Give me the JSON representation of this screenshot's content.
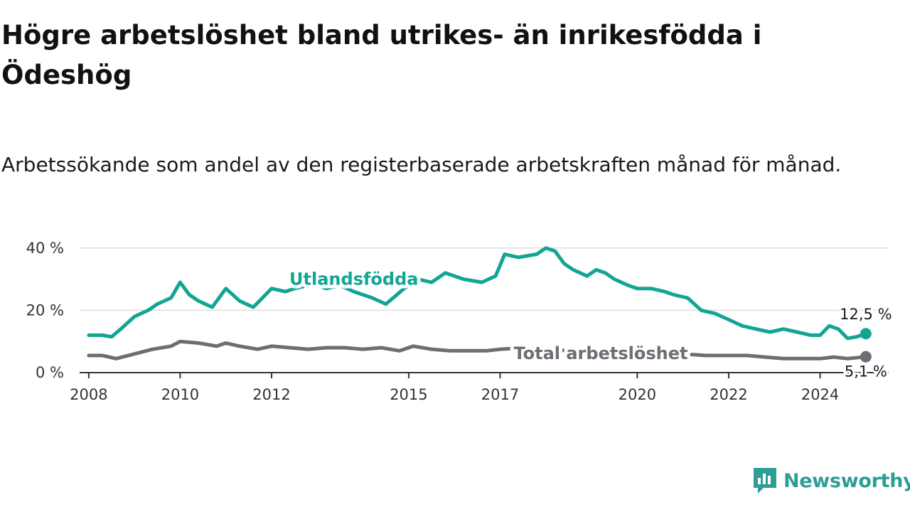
{
  "title": "Högre arbetslöshet bland utrikes- än inrikesfödda i Ödeshög",
  "subtitle": "Arbetssökande som andel av den registerbaserade arbetskraften månad för månad.",
  "brand": "Newsworthy",
  "colors": {
    "foreign_born": "#12a594",
    "total": "#6e6c75",
    "grid": "#dddddd",
    "axis": "#333333",
    "brand": "#2e9e95"
  },
  "chart_data": {
    "type": "line",
    "title": "Högre arbetslöshet bland utrikes- än inrikesfödda i Ödeshög",
    "ylim": [
      0,
      42
    ],
    "xlim": [
      2007.8,
      2025.5
    ],
    "x_ticks": [
      2008,
      2010,
      2012,
      2015,
      2017,
      2020,
      2022,
      2024
    ],
    "x_tick_labels": [
      "2008",
      "2010",
      "2012",
      "2015",
      "2017",
      "2020",
      "2022",
      "2024"
    ],
    "y_ticks": [
      0,
      20,
      40
    ],
    "y_tick_labels": [
      "0 %",
      "20 %",
      "40 %"
    ],
    "grid": "horizontal",
    "series": [
      {
        "name": "Utlandsfödda",
        "color": "#12a594",
        "end_label": "12,5 %",
        "x": [
          2008,
          2008.3,
          2008.5,
          2008.7,
          2009,
          2009.3,
          2009.5,
          2009.8,
          2010,
          2010.2,
          2010.4,
          2010.7,
          2011,
          2011.3,
          2011.6,
          2011.8,
          2012,
          2012.3,
          2012.5,
          2012.8,
          2013,
          2013.2,
          2013.5,
          2013.8,
          2014.2,
          2014.5,
          2014.9,
          2015.2,
          2015.5,
          2015.8,
          2016.2,
          2016.6,
          2016.9,
          2017.1,
          2017.4,
          2017.8,
          2018,
          2018.2,
          2018.4,
          2018.6,
          2018.9,
          2019.1,
          2019.3,
          2019.5,
          2019.8,
          2020,
          2020.3,
          2020.6,
          2020.8,
          2021.1,
          2021.4,
          2021.7,
          2022,
          2022.3,
          2022.6,
          2022.9,
          2023.2,
          2023.5,
          2023.8,
          2024,
          2024.2,
          2024.4,
          2024.6,
          2024.8,
          2025
        ],
        "y": [
          12,
          12,
          11.5,
          14,
          18,
          20,
          22,
          24,
          29,
          25,
          23,
          21,
          27,
          23,
          21,
          24,
          27,
          26,
          27,
          28,
          28,
          27,
          28,
          26,
          24,
          22,
          27,
          30,
          29,
          32,
          30,
          29,
          31,
          38,
          37,
          38,
          40,
          39,
          35,
          33,
          31,
          33,
          32,
          30,
          28,
          27,
          27,
          26,
          25,
          24,
          20,
          19,
          17,
          15,
          14,
          13,
          14,
          13,
          12,
          12,
          15,
          14,
          11,
          11.5,
          12.5
        ]
      },
      {
        "name": "Total arbetslöshet",
        "color": "#6e6c75",
        "end_label": "5,1 %",
        "x": [
          2008,
          2008.3,
          2008.6,
          2009,
          2009.4,
          2009.8,
          2010,
          2010.4,
          2010.8,
          2011,
          2011.3,
          2011.7,
          2012,
          2012.4,
          2012.8,
          2013.2,
          2013.6,
          2014,
          2014.4,
          2014.8,
          2015.1,
          2015.5,
          2015.9,
          2016.3,
          2016.7,
          2017,
          2017.5,
          2018,
          2018.5,
          2019,
          2019.5,
          2020,
          2020.5,
          2021,
          2021.5,
          2022,
          2022.4,
          2022.8,
          2023.2,
          2023.6,
          2024,
          2024.3,
          2024.6,
          2025
        ],
        "y": [
          5.5,
          5.5,
          4.5,
          6,
          7.5,
          8.5,
          10,
          9.5,
          8.5,
          9.5,
          8.5,
          7.5,
          8.5,
          8,
          7.5,
          8,
          8,
          7.5,
          8,
          7,
          8.5,
          7.5,
          7,
          7,
          7,
          7.5,
          8,
          7.5,
          7,
          7,
          6.5,
          6.5,
          6,
          6,
          5.5,
          5.5,
          5.5,
          5,
          4.5,
          4.5,
          4.5,
          5,
          4.5,
          5.1
        ]
      }
    ]
  }
}
